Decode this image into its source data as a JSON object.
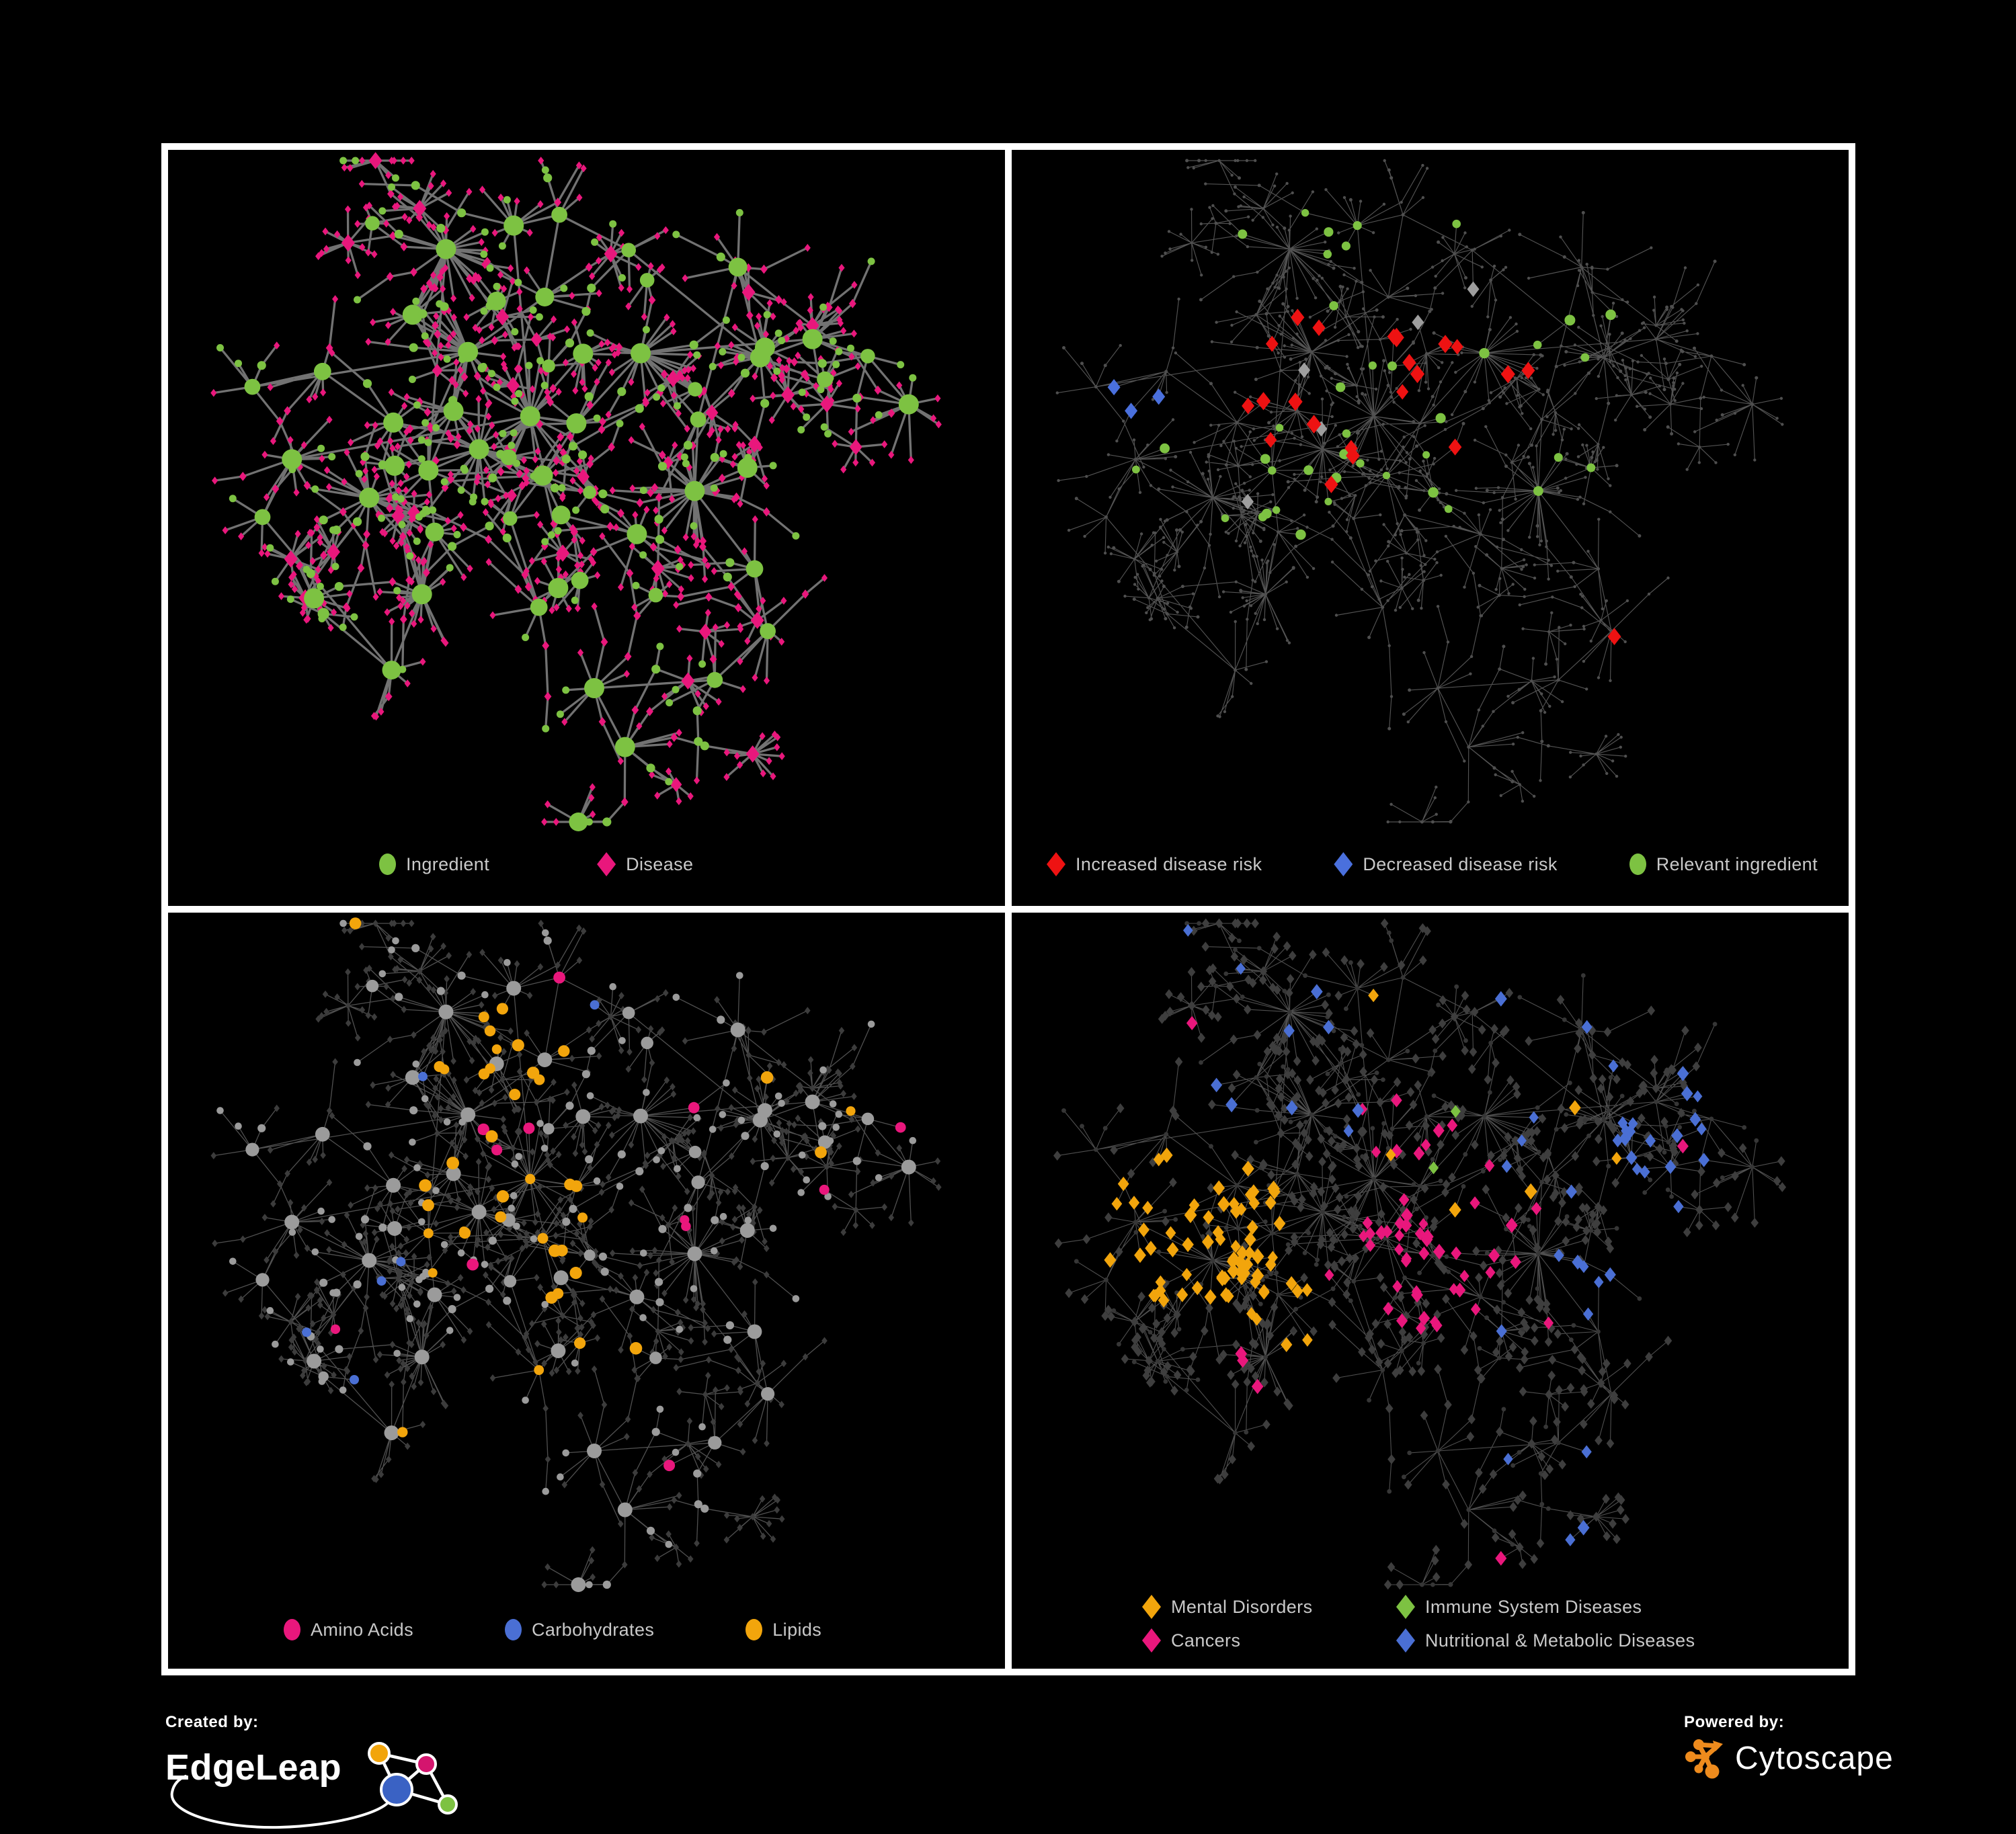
{
  "page": {
    "background": "#000000",
    "frame_color": "#ffffff",
    "panel_background": "#000000",
    "legend_text_color": "#c9c9c9"
  },
  "chart_data": [
    {
      "panel": "top-left",
      "type": "network",
      "description": "Ingredient-disease association network; ingredient nodes drawn as green circles sized by connectivity, disease nodes as magenta diamonds, gray edges",
      "node_shape_meaning": {
        "circle": "Ingredient",
        "diamond": "Disease"
      },
      "edge_color": "#787878",
      "background": "#000000",
      "legend": [
        {
          "label": "Ingredient",
          "shape": "circle",
          "color": "#7dc242"
        },
        {
          "label": "Disease",
          "shape": "diamond",
          "color": "#e9177c"
        }
      ]
    },
    {
      "panel": "top-right",
      "type": "network",
      "description": "Same network with disease-risk highlights: red diamonds = increased risk, blue diamonds = decreased risk, gray diamonds = other highlighted diseases, green circles = relevant ingredients; all other nodes tiny gray dots",
      "edge_color": "#5c5c5c",
      "background": "#000000",
      "default_node_color": "#4f4f4f",
      "other_disease_color": "#9e9e9e",
      "legend": [
        {
          "label": "Increased disease risk",
          "shape": "diamond",
          "color": "#ee1212"
        },
        {
          "label": "Decreased disease risk",
          "shape": "diamond",
          "color": "#4a70dd"
        },
        {
          "label": "Relevant ingredient",
          "shape": "circle",
          "color": "#7dc242"
        }
      ]
    },
    {
      "panel": "bottom-left",
      "type": "network",
      "description": "Same network with ingredient classes highlighted: pink = amino acids, blue = carbohydrates, yellow = lipids (dense lipid cluster upper middle); other ingredients gray circles, diseases small dark diamonds",
      "edge_color": "#5e5e5e",
      "background": "#000000",
      "default_ingredient_color": "#9b9b9b",
      "default_disease_color": "#3c3c3c",
      "legend": [
        {
          "label": "Amino Acids",
          "shape": "circle",
          "color": "#e9177c"
        },
        {
          "label": "Carbohydrates",
          "shape": "circle",
          "color": "#4a6fd4"
        },
        {
          "label": "Lipids",
          "shape": "circle",
          "color": "#f2a50c"
        }
      ]
    },
    {
      "panel": "bottom-right",
      "type": "network",
      "description": "Same network with disease categories highlighted: orange diamonds = mental disorders (dense cluster left), green = immune system diseases, magenta = cancers (center), blue = nutritional & metabolic diseases (right and scattered); other diseases dark gray diamonds",
      "edge_color": "#585858",
      "background": "#000000",
      "default_ingredient_color": "#363636",
      "default_disease_color": "#3e3e3e",
      "legend": [
        {
          "label": "Mental Disorders",
          "shape": "diamond",
          "color": "#f2a50c"
        },
        {
          "label": "Immune System Diseases",
          "shape": "diamond",
          "color": "#7dc242"
        },
        {
          "label": "Cancers",
          "shape": "diamond",
          "color": "#e9177c"
        },
        {
          "label": "Nutritional & Metabolic Diseases",
          "shape": "diamond",
          "color": "#4a6fd4"
        }
      ]
    }
  ],
  "branding": {
    "created_by_label": "Created by:",
    "created_by_name": "EdgeLeap",
    "powered_by_label": "Powered by:",
    "powered_by_name": "Cytoscape",
    "edgeleap_logo_colors": {
      "orange": "#f2a50c",
      "magenta": "#d4156e",
      "blue": "#3a62c4",
      "green": "#7dc242"
    },
    "cytoscape_logo_color": "#ee8b1d"
  }
}
